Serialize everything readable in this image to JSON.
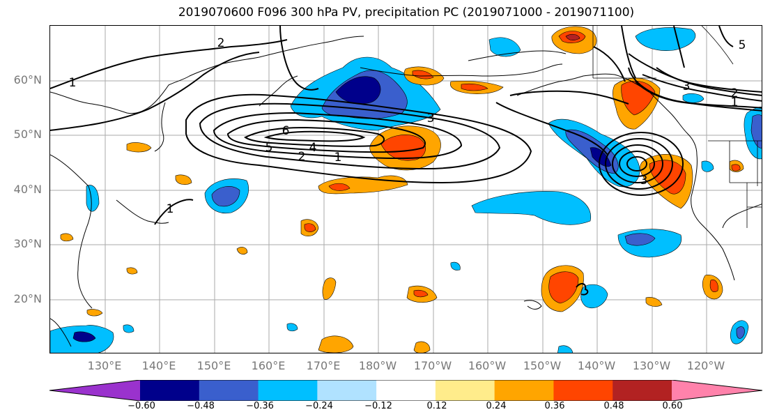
{
  "title": "2019070600 F096 300 hPa PV, precipitation PC (2019071000 - 2019071100)",
  "map": {
    "lat_labels": [
      "60°N",
      "50°N",
      "40°N",
      "30°N",
      "20°N"
    ],
    "lon_labels": [
      "130°E",
      "140°E",
      "150°E",
      "160°E",
      "170°E",
      "180°W",
      "170°W",
      "160°W",
      "150°W",
      "140°W",
      "130°W",
      "120°W"
    ],
    "contour_labels": [
      "1",
      "2",
      "1",
      "2",
      "4",
      "5",
      "6",
      "3",
      "1",
      "3",
      "2",
      "1",
      "3",
      "5"
    ]
  },
  "colorbar": {
    "ticks": [
      "−0.60",
      "−0.48",
      "−0.36",
      "−0.24",
      "−0.12",
      "0.12",
      "0.24",
      "0.36",
      "0.48",
      "0.60"
    ],
    "colors": [
      "#9a32cd",
      "#00008b",
      "#3a5fcd",
      "#00bfff",
      "#b0e2ff",
      "#ffffff",
      "#ffec8b",
      "#ffa500",
      "#ff4500",
      "#b22222",
      "#ff82ab"
    ]
  }
}
